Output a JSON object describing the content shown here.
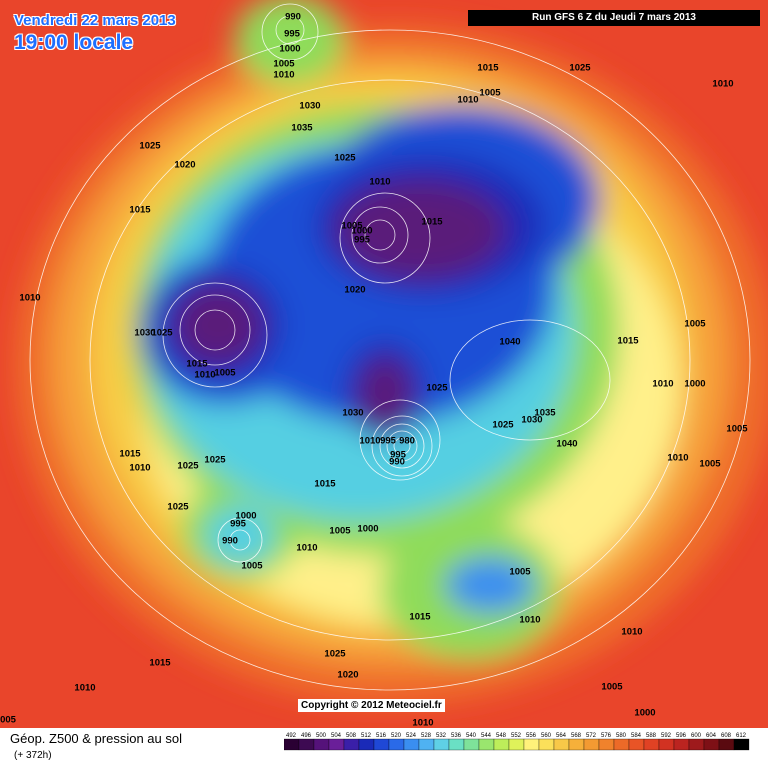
{
  "header": {
    "date": "Vendredi 22 mars 2013",
    "time": "19:00 locale",
    "run": "Run GFS 6 Z du Jeudi 7 mars 2013"
  },
  "map": {
    "isobar_labels": [
      "990",
      "995",
      "1000",
      "1005",
      "1010",
      "1015",
      "1025",
      "1010",
      "1010",
      "1005",
      "1030",
      "1035",
      "1025",
      "1020",
      "1025",
      "1010",
      "1015",
      "1005",
      "1000",
      "995",
      "1015",
      "1020",
      "1010",
      "1005",
      "1015",
      "1030",
      "1025",
      "1040",
      "1015",
      "1010",
      "1005",
      "1025",
      "1010",
      "1000",
      "1030",
      "1035",
      "1030",
      "1025",
      "1005",
      "1040",
      "1010",
      "995",
      "980",
      "995",
      "990",
      "1015",
      "1010",
      "1025",
      "1025",
      "1010",
      "1005",
      "1015",
      "1025",
      "1000",
      "995",
      "990",
      "1005",
      "1000",
      "1010",
      "1005",
      "1005",
      "1015",
      "1010",
      "1010",
      "1015",
      "1025",
      "1020",
      "1005",
      "1010",
      "1000",
      "005",
      "1010"
    ],
    "copyright": "Copyright © 2012 Meteociel.fr"
  },
  "legend": {
    "title": "Géop. Z500 & pression au sol",
    "lead": "(+ 372h)",
    "levels": [
      492,
      496,
      500,
      504,
      508,
      512,
      516,
      520,
      524,
      528,
      532,
      536,
      540,
      544,
      548,
      552,
      556,
      560,
      564,
      568,
      572,
      576,
      580,
      584,
      588,
      592,
      596,
      600,
      604,
      608,
      612
    ],
    "colors": [
      "#2a0033",
      "#3d0a52",
      "#55127a",
      "#6a1f99",
      "#3a1fa8",
      "#1a2ab8",
      "#1f48d6",
      "#2a6ae8",
      "#3a8ef0",
      "#4fb2f2",
      "#5fd0e6",
      "#6ae0c4",
      "#7ee29a",
      "#9ae66e",
      "#bdee5a",
      "#dff25a",
      "#fff27a",
      "#fbe05a",
      "#f8c848",
      "#f6b03a",
      "#f39a32",
      "#f0822c",
      "#ec6a28",
      "#e85426",
      "#e04224",
      "#d23222",
      "#bb2420",
      "#9e1a1c",
      "#7e1016",
      "#5a0a10",
      "#000000"
    ]
  }
}
